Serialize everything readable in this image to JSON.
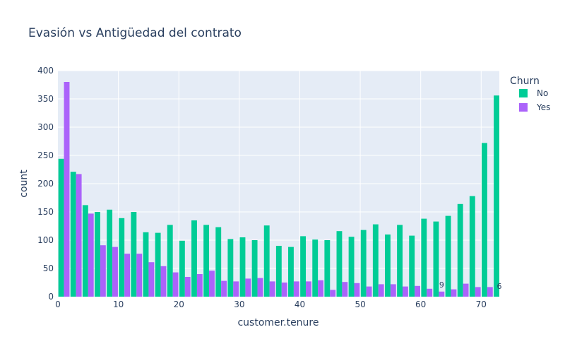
{
  "chart_data": {
    "type": "bar",
    "title": "Evasión vs Antigüedad del contrato",
    "xlabel": "customer.tenure",
    "ylabel": "count",
    "xlim": [
      0,
      73
    ],
    "ylim": [
      0,
      400
    ],
    "x_ticks": [
      0,
      10,
      20,
      30,
      40,
      50,
      60,
      70
    ],
    "y_ticks": [
      0,
      50,
      100,
      150,
      200,
      250,
      300,
      350,
      400
    ],
    "grid": true,
    "legend": {
      "title": "Churn",
      "position": "top-right"
    },
    "bin_width": 2,
    "bin_starts": [
      0,
      2,
      4,
      6,
      8,
      10,
      12,
      14,
      16,
      18,
      20,
      22,
      24,
      26,
      28,
      30,
      32,
      34,
      36,
      38,
      40,
      42,
      44,
      46,
      48,
      50,
      52,
      54,
      56,
      58,
      60,
      62,
      64,
      66,
      68,
      70,
      72
    ],
    "series": [
      {
        "name": "No",
        "color": "#00cc96",
        "values": [
          244,
          221,
          162,
          150,
          154,
          139,
          150,
          114,
          113,
          127,
          99,
          135,
          127,
          123,
          102,
          105,
          100,
          126,
          90,
          88,
          107,
          101,
          100,
          116,
          106,
          118,
          128,
          110,
          127,
          108,
          138,
          133,
          143,
          164,
          178,
          272,
          356
        ]
      },
      {
        "name": "Yes",
        "color": "#ab63fa",
        "values": [
          380,
          217,
          147,
          91,
          88,
          76,
          76,
          61,
          54,
          43,
          35,
          40,
          46,
          28,
          27,
          32,
          33,
          27,
          25,
          27,
          27,
          29,
          12,
          26,
          24,
          18,
          22,
          22,
          18,
          19,
          14,
          9,
          13,
          23,
          17,
          17,
          6
        ]
      }
    ],
    "annotations": [
      {
        "series": "Yes",
        "x": 62,
        "text": "9"
      },
      {
        "series": "Yes",
        "x": 72,
        "text": "6"
      }
    ]
  }
}
